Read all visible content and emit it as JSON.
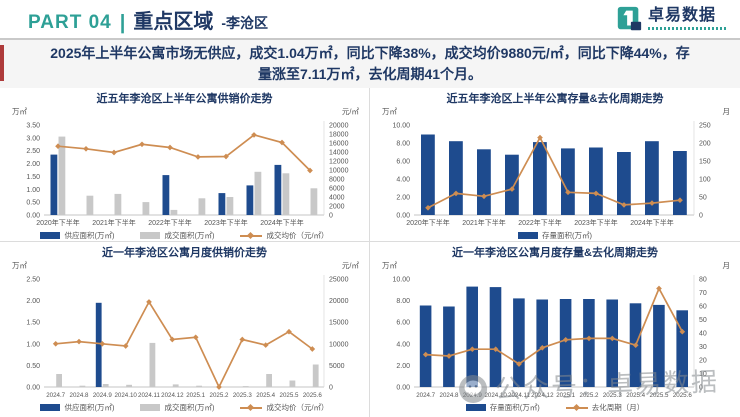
{
  "header": {
    "part_label": "PART 04",
    "divider": "|",
    "title": "重点区域",
    "subtitle": "-李沧区",
    "logo_text": "卓易数据"
  },
  "summary": {
    "text": "2025年上半年公寓市场无供应，成交1.04万㎡，同比下降38%，成交均价9880元/㎡，同比下降44%，存量涨至7.11万㎡，去化周期41个月。"
  },
  "watermark": {
    "text": "公众号：卓易数据"
  },
  "colors": {
    "accent_teal": "#2EA096",
    "navy_text": "#1F3864",
    "bar_blue": "#1E4B8E",
    "bar_gray": "#C8C8C8",
    "line_orange": "#CE8D52",
    "red_stripe": "#AE3B3B"
  },
  "chart_data": [
    {
      "type": "bar",
      "title": "近五年李沧区上半年公寓供销价走势",
      "left_axis": {
        "unit": "万㎡",
        "min": 0,
        "max": 3.5,
        "step": 0.5
      },
      "right_axis": {
        "unit": "元/㎡",
        "min": 0,
        "max": 20000,
        "step": 2000
      },
      "n_points": 10,
      "label_positions": [
        0,
        2,
        4,
        6,
        8
      ],
      "x_labels": [
        "2020年下半年",
        "2021年下半年",
        "2022年下半年",
        "2023年下半年",
        "2024年下半年"
      ],
      "series": [
        {
          "name": "供应面积(万㎡)",
          "type": "bar",
          "color": "#1E4B8E",
          "values": [
            2.35,
            0,
            0,
            0,
            1.55,
            0,
            0.85,
            1.15,
            1.95,
            0
          ]
        },
        {
          "name": "成交面积(万㎡)",
          "type": "bar",
          "color": "#C8C8C8",
          "values": [
            3.05,
            0.75,
            0.82,
            0.5,
            0.2,
            0.65,
            0.7,
            1.68,
            1.62,
            1.04
          ]
        },
        {
          "name": "成交均价（元/㎡）",
          "type": "line",
          "color": "#CE8D52",
          "values": [
            15300,
            14700,
            13900,
            15700,
            15000,
            12900,
            13000,
            17800,
            16100,
            9880
          ]
        }
      ]
    },
    {
      "type": "bar",
      "title": "近五年李沧区上半年公寓存量&去化周期走势",
      "left_axis": {
        "unit": "万㎡",
        "min": 0,
        "max": 10,
        "step": 2
      },
      "right_axis": {
        "unit": "月",
        "min": 0,
        "max": 250,
        "step": 50
      },
      "n_points": 10,
      "label_positions": [
        0,
        2,
        4,
        6,
        8
      ],
      "x_labels": [
        "2020年下半年",
        "2021年下半年",
        "2022年下半年",
        "2023年下半年",
        "2024年下半年"
      ],
      "series": [
        {
          "name": "存量面积(万㎡)",
          "type": "bar",
          "color": "#1E4B8E",
          "values": [
            8.95,
            8.2,
            7.3,
            6.7,
            8.1,
            7.4,
            7.5,
            7.0,
            8.2,
            7.11
          ]
        },
        {
          "name": "去化周期（月）",
          "type": "line",
          "color": "#CE8D52",
          "in_legend": false,
          "values": [
            20,
            60,
            52,
            72,
            215,
            63,
            60,
            28,
            33,
            41
          ]
        }
      ]
    },
    {
      "type": "bar",
      "title": "近一年李沧区公寓月度供销价走势",
      "left_axis": {
        "unit": "万㎡",
        "min": 0,
        "max": 2.5,
        "step": 0.5
      },
      "right_axis": {
        "unit": "元/㎡",
        "min": 0,
        "max": 25000,
        "step": 5000
      },
      "n_points": 12,
      "x_labels": [
        "2024.7",
        "2024.8",
        "2024.9",
        "2024.10",
        "2024.11",
        "2024.12",
        "2025.1",
        "2025.2",
        "2025.3",
        "2025.4",
        "2025.5",
        "2025.6"
      ],
      "series": [
        {
          "name": "供应面积(万㎡)",
          "type": "bar",
          "color": "#1E4B8E",
          "values": [
            0,
            0,
            1.95,
            0,
            0,
            0,
            0,
            0,
            0,
            0,
            0,
            0
          ]
        },
        {
          "name": "成交面积(万㎡)",
          "type": "bar",
          "color": "#C8C8C8",
          "values": [
            0.3,
            0.03,
            0.07,
            0.05,
            1.02,
            0.06,
            0.03,
            0,
            0.02,
            0.3,
            0.15,
            0.52
          ]
        },
        {
          "name": "成交均价（元/㎡）",
          "type": "line",
          "color": "#CE8D52",
          "values": [
            10000,
            10500,
            10000,
            9500,
            19700,
            11000,
            11500,
            0,
            11000,
            9700,
            12800,
            8800
          ]
        }
      ]
    },
    {
      "type": "bar",
      "title": "近一年李沧区公寓月度存量&去化周期走势",
      "left_axis": {
        "unit": "万㎡",
        "min": 0,
        "max": 10,
        "step": 2
      },
      "right_axis": {
        "unit": "月",
        "min": 0,
        "max": 80,
        "step": 10
      },
      "n_points": 12,
      "x_labels": [
        "2024.7",
        "2024.8",
        "2024.9",
        "2024.10",
        "2024.11",
        "2024.12",
        "2025.1",
        "2025.2",
        "2025.3",
        "2025.4",
        "2025.5",
        "2025.6"
      ],
      "series": [
        {
          "name": "存量面积(万㎡)",
          "type": "bar",
          "color": "#1E4B8E",
          "values": [
            7.55,
            7.45,
            9.3,
            9.25,
            8.2,
            8.1,
            8.15,
            8.15,
            8.1,
            7.75,
            7.6,
            7.1
          ]
        },
        {
          "name": "去化周期（月）",
          "type": "line",
          "color": "#CE8D52",
          "values": [
            24,
            23,
            28,
            28,
            17,
            29,
            35,
            36,
            36,
            31,
            73,
            41
          ]
        }
      ]
    }
  ]
}
